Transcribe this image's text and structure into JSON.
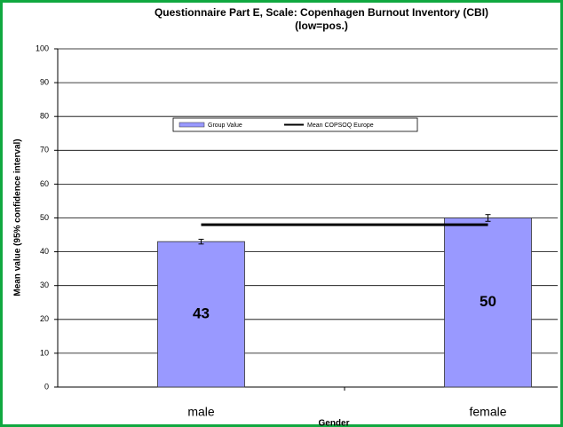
{
  "chart_data": {
    "type": "bar",
    "title": [
      "Questionnaire Part E, Scale: Copenhagen Burnout Inventory (CBI)",
      "(low=pos.)"
    ],
    "y_label": "Mean value (95% confidence interval)",
    "x_label": "Gender",
    "categories": [
      "male",
      "female"
    ],
    "series": [
      {
        "name": "Group Value",
        "type": "bar",
        "color": "#9999ff",
        "values": [
          43,
          50
        ],
        "errors": [
          0.7,
          1
        ]
      },
      {
        "name": "Mean COPSOQ Europe",
        "type": "line",
        "color": "#000000",
        "values": [
          48,
          48
        ]
      }
    ],
    "ylim": [
      0,
      100
    ],
    "yticks": [
      0,
      10,
      20,
      30,
      40,
      50,
      60,
      70,
      80,
      90,
      100
    ],
    "grid": true,
    "legend": "top"
  }
}
